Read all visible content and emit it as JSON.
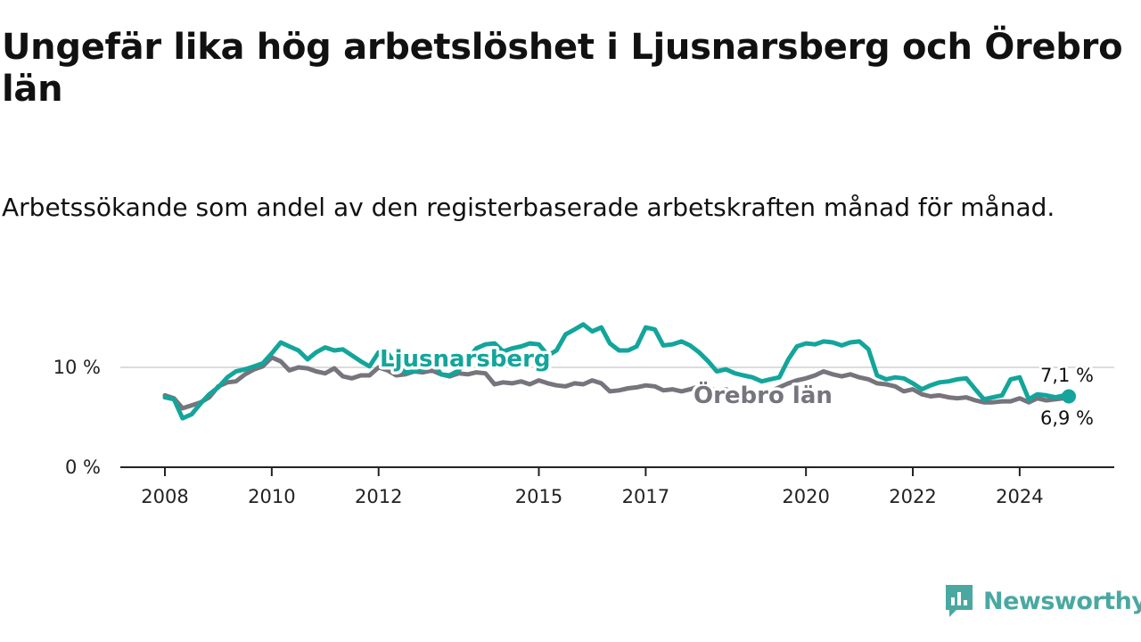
{
  "header": {
    "title": "Ungefär lika hög arbetslöshet i Ljusnarsberg och Örebro län",
    "subtitle": "Arbetssökande som andel av den registerbaserade arbetskraften månad för månad."
  },
  "brand": {
    "name": "Newsworthy",
    "logo_icon": "newsworthy-chart-icon",
    "color": "#4aa8a0"
  },
  "colors": {
    "ljusnarsberg": "#13a59b",
    "orebro": "#76747c",
    "axis": "#222222",
    "grid": "#dcdcdc"
  },
  "chart_data": {
    "type": "line",
    "title": "Ungefär lika hög arbetslöshet i Ljusnarsberg och Örebro län",
    "subtitle": "Arbetssökande som andel av den registerbaserade arbetskraften månad för månad.",
    "xlabel": "",
    "ylabel": "",
    "x_ticks": [
      "2008",
      "2010",
      "2012",
      "2015",
      "2017",
      "2020",
      "2022",
      "2024"
    ],
    "x_tick_values": [
      2008.0,
      2010.0,
      2012.0,
      2015.0,
      2017.0,
      2020.0,
      2022.0,
      2024.0
    ],
    "y_ticks": [
      "0 %",
      "10 %"
    ],
    "y_tick_values": [
      0,
      10
    ],
    "xlim": [
      2008.0,
      2025.1
    ],
    "ylim": [
      0,
      14.5
    ],
    "grid": true,
    "legend": "inline labels on lines",
    "series": [
      {
        "name": "Ljusnarsberg",
        "end_label": "7,1 %",
        "points": [
          [
            2008.0,
            7.0
          ],
          [
            2008.17,
            6.8
          ],
          [
            2008.33,
            4.9
          ],
          [
            2008.5,
            5.3
          ],
          [
            2008.67,
            6.4
          ],
          [
            2008.83,
            7.3
          ],
          [
            2009.0,
            8.0
          ],
          [
            2009.17,
            9.0
          ],
          [
            2009.33,
            9.6
          ],
          [
            2009.5,
            9.8
          ],
          [
            2009.67,
            10.1
          ],
          [
            2009.83,
            10.4
          ],
          [
            2010.0,
            11.4
          ],
          [
            2010.17,
            12.5
          ],
          [
            2010.33,
            12.1
          ],
          [
            2010.5,
            11.7
          ],
          [
            2010.67,
            10.8
          ],
          [
            2010.83,
            11.5
          ],
          [
            2011.0,
            12.0
          ],
          [
            2011.17,
            11.7
          ],
          [
            2011.33,
            11.8
          ],
          [
            2011.5,
            11.2
          ],
          [
            2011.67,
            10.6
          ],
          [
            2011.83,
            10.1
          ],
          [
            2012.0,
            11.5
          ],
          [
            2012.17,
            11.4
          ],
          [
            2012.33,
            10.2
          ],
          [
            2012.5,
            9.5
          ],
          [
            2012.67,
            9.6
          ],
          [
            2012.83,
            9.8
          ],
          [
            2013.0,
            10.6
          ],
          [
            2013.17,
            9.3
          ],
          [
            2013.33,
            9.2
          ],
          [
            2013.5,
            9.7
          ],
          [
            2013.67,
            10.8
          ],
          [
            2013.83,
            11.9
          ],
          [
            2014.0,
            12.3
          ],
          [
            2014.17,
            12.4
          ],
          [
            2014.33,
            11.6
          ],
          [
            2014.5,
            11.9
          ],
          [
            2014.67,
            12.1
          ],
          [
            2014.83,
            12.4
          ],
          [
            2015.0,
            12.3
          ],
          [
            2015.17,
            11.2
          ],
          [
            2015.33,
            11.7
          ],
          [
            2015.5,
            13.3
          ],
          [
            2015.67,
            13.8
          ],
          [
            2015.83,
            14.3
          ],
          [
            2016.0,
            13.6
          ],
          [
            2016.17,
            14.0
          ],
          [
            2016.33,
            12.4
          ],
          [
            2016.5,
            11.7
          ],
          [
            2016.67,
            11.7
          ],
          [
            2016.83,
            12.1
          ],
          [
            2017.0,
            14.0
          ],
          [
            2017.17,
            13.8
          ],
          [
            2017.33,
            12.2
          ],
          [
            2017.5,
            12.3
          ],
          [
            2017.67,
            12.6
          ],
          [
            2017.83,
            12.2
          ],
          [
            2018.0,
            11.5
          ],
          [
            2018.17,
            10.6
          ],
          [
            2018.33,
            9.6
          ],
          [
            2018.5,
            9.8
          ],
          [
            2018.67,
            9.4
          ],
          [
            2018.83,
            9.2
          ],
          [
            2019.0,
            9.0
          ],
          [
            2019.17,
            8.6
          ],
          [
            2019.33,
            8.8
          ],
          [
            2019.5,
            9.0
          ],
          [
            2019.67,
            10.8
          ],
          [
            2019.83,
            12.1
          ],
          [
            2020.0,
            12.4
          ],
          [
            2020.17,
            12.3
          ],
          [
            2020.33,
            12.6
          ],
          [
            2020.5,
            12.5
          ],
          [
            2020.67,
            12.2
          ],
          [
            2020.83,
            12.5
          ],
          [
            2021.0,
            12.6
          ],
          [
            2021.17,
            11.8
          ],
          [
            2021.33,
            9.2
          ],
          [
            2021.5,
            8.8
          ],
          [
            2021.67,
            9.0
          ],
          [
            2021.83,
            8.9
          ],
          [
            2022.0,
            8.4
          ],
          [
            2022.17,
            7.8
          ],
          [
            2022.33,
            8.2
          ],
          [
            2022.5,
            8.5
          ],
          [
            2022.67,
            8.6
          ],
          [
            2022.83,
            8.8
          ],
          [
            2023.0,
            8.9
          ],
          [
            2023.17,
            7.8
          ],
          [
            2023.33,
            6.8
          ],
          [
            2023.5,
            7.0
          ],
          [
            2023.67,
            7.2
          ],
          [
            2023.83,
            8.8
          ],
          [
            2024.0,
            9.0
          ],
          [
            2024.17,
            6.8
          ],
          [
            2024.33,
            7.3
          ],
          [
            2024.5,
            7.2
          ],
          [
            2024.67,
            7.0
          ],
          [
            2024.83,
            7.2
          ],
          [
            2024.92,
            7.1
          ]
        ]
      },
      {
        "name": "Örebro län",
        "end_label": "6,9 %",
        "points": [
          [
            2008.0,
            7.2
          ],
          [
            2008.17,
            6.9
          ],
          [
            2008.33,
            5.9
          ],
          [
            2008.5,
            6.2
          ],
          [
            2008.67,
            6.5
          ],
          [
            2008.83,
            7.0
          ],
          [
            2009.0,
            8.1
          ],
          [
            2009.17,
            8.5
          ],
          [
            2009.33,
            8.6
          ],
          [
            2009.5,
            9.3
          ],
          [
            2009.67,
            9.8
          ],
          [
            2009.83,
            10.1
          ],
          [
            2010.0,
            11.0
          ],
          [
            2010.17,
            10.6
          ],
          [
            2010.33,
            9.7
          ],
          [
            2010.5,
            10.0
          ],
          [
            2010.67,
            9.9
          ],
          [
            2010.83,
            9.6
          ],
          [
            2011.0,
            9.4
          ],
          [
            2011.17,
            9.9
          ],
          [
            2011.33,
            9.1
          ],
          [
            2011.5,
            8.9
          ],
          [
            2011.67,
            9.2
          ],
          [
            2011.83,
            9.2
          ],
          [
            2012.0,
            10.0
          ],
          [
            2012.17,
            9.7
          ],
          [
            2012.33,
            9.2
          ],
          [
            2012.5,
            9.3
          ],
          [
            2012.67,
            9.6
          ],
          [
            2012.83,
            9.5
          ],
          [
            2013.0,
            9.7
          ],
          [
            2013.17,
            9.3
          ],
          [
            2013.33,
            9.1
          ],
          [
            2013.5,
            9.4
          ],
          [
            2013.67,
            9.3
          ],
          [
            2013.83,
            9.5
          ],
          [
            2014.0,
            9.4
          ],
          [
            2014.17,
            8.3
          ],
          [
            2014.33,
            8.5
          ],
          [
            2014.5,
            8.4
          ],
          [
            2014.67,
            8.6
          ],
          [
            2014.83,
            8.3
          ],
          [
            2015.0,
            8.7
          ],
          [
            2015.17,
            8.4
          ],
          [
            2015.33,
            8.2
          ],
          [
            2015.5,
            8.1
          ],
          [
            2015.67,
            8.4
          ],
          [
            2015.83,
            8.3
          ],
          [
            2016.0,
            8.7
          ],
          [
            2016.17,
            8.4
          ],
          [
            2016.33,
            7.6
          ],
          [
            2016.5,
            7.7
          ],
          [
            2016.67,
            7.9
          ],
          [
            2016.83,
            8.0
          ],
          [
            2017.0,
            8.2
          ],
          [
            2017.17,
            8.1
          ],
          [
            2017.33,
            7.7
          ],
          [
            2017.5,
            7.8
          ],
          [
            2017.67,
            7.6
          ],
          [
            2017.83,
            7.8
          ],
          [
            2018.0,
            8.1
          ],
          [
            2018.17,
            7.9
          ],
          [
            2018.33,
            7.7
          ],
          [
            2018.5,
            7.8
          ],
          [
            2018.67,
            7.5
          ],
          [
            2018.83,
            7.6
          ],
          [
            2019.0,
            7.4
          ],
          [
            2019.17,
            7.5
          ],
          [
            2019.33,
            7.6
          ],
          [
            2019.5,
            8.0
          ],
          [
            2019.67,
            8.4
          ],
          [
            2019.83,
            8.7
          ],
          [
            2020.0,
            8.9
          ],
          [
            2020.17,
            9.2
          ],
          [
            2020.33,
            9.6
          ],
          [
            2020.5,
            9.3
          ],
          [
            2020.67,
            9.1
          ],
          [
            2020.83,
            9.3
          ],
          [
            2021.0,
            9.0
          ],
          [
            2021.17,
            8.8
          ],
          [
            2021.33,
            8.4
          ],
          [
            2021.5,
            8.3
          ],
          [
            2021.67,
            8.1
          ],
          [
            2021.83,
            7.6
          ],
          [
            2022.0,
            7.8
          ],
          [
            2022.17,
            7.3
          ],
          [
            2022.33,
            7.1
          ],
          [
            2022.5,
            7.2
          ],
          [
            2022.67,
            7.0
          ],
          [
            2022.83,
            6.9
          ],
          [
            2023.0,
            7.0
          ],
          [
            2023.17,
            6.7
          ],
          [
            2023.33,
            6.5
          ],
          [
            2023.5,
            6.5
          ],
          [
            2023.67,
            6.6
          ],
          [
            2023.83,
            6.6
          ],
          [
            2024.0,
            6.9
          ],
          [
            2024.17,
            6.5
          ],
          [
            2024.33,
            6.9
          ],
          [
            2024.5,
            6.7
          ],
          [
            2024.67,
            6.8
          ],
          [
            2024.83,
            6.9
          ],
          [
            2024.92,
            6.9
          ]
        ]
      }
    ]
  }
}
